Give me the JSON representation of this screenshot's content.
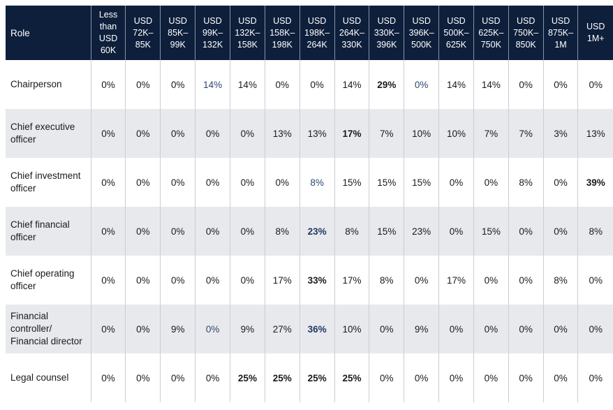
{
  "table": {
    "headers": [
      "Role",
      "Less than USD 60K",
      "USD 72K–85K",
      "USD 85K–99K",
      "USD 99K–132K",
      "USD 132K–158K",
      "USD 158K–198K",
      "USD 198K–264K",
      "USD 264K–330K",
      "USD 330K–396K",
      "USD 396K–500K",
      "USD 500K–625K",
      "USD 625K–750K",
      "USD 750K–850K",
      "USD 875K–1M",
      "USD 1M+"
    ],
    "rows": [
      {
        "role": "Chairperson",
        "values": [
          "0%",
          "0%",
          "0%",
          "14%",
          "14%",
          "0%",
          "0%",
          "14%",
          "29%",
          "0%",
          "14%",
          "14%",
          "0%",
          "0%",
          "0%"
        ],
        "bold": [
          8
        ],
        "accent": [
          3,
          9
        ]
      },
      {
        "role": "Chief executive officer",
        "values": [
          "0%",
          "0%",
          "0%",
          "0%",
          "0%",
          "13%",
          "13%",
          "17%",
          "7%",
          "10%",
          "10%",
          "7%",
          "7%",
          "3%",
          "13%"
        ],
        "bold": [
          7
        ],
        "accent": []
      },
      {
        "role": "Chief investment officer",
        "values": [
          "0%",
          "0%",
          "0%",
          "0%",
          "0%",
          "0%",
          "8%",
          "15%",
          "15%",
          "15%",
          "0%",
          "0%",
          "8%",
          "0%",
          "39%"
        ],
        "bold": [
          14
        ],
        "accent": [
          6
        ]
      },
      {
        "role": "Chief financial officer",
        "values": [
          "0%",
          "0%",
          "0%",
          "0%",
          "0%",
          "8%",
          "23%",
          "8%",
          "15%",
          "23%",
          "0%",
          "15%",
          "0%",
          "0%",
          "8%"
        ],
        "bold": [
          6
        ],
        "accent": [
          6
        ]
      },
      {
        "role": "Chief operating officer",
        "values": [
          "0%",
          "0%",
          "0%",
          "0%",
          "0%",
          "17%",
          "33%",
          "17%",
          "8%",
          "0%",
          "17%",
          "0%",
          "0%",
          "8%",
          "0%"
        ],
        "bold": [
          6
        ],
        "accent": []
      },
      {
        "role": "Financial controller/ Financial director",
        "values": [
          "0%",
          "0%",
          "9%",
          "0%",
          "9%",
          "27%",
          "36%",
          "10%",
          "0%",
          "9%",
          "0%",
          "0%",
          "0%",
          "0%",
          "0%"
        ],
        "bold": [
          6
        ],
        "accent": [
          3,
          6
        ]
      },
      {
        "role": "Legal counsel",
        "values": [
          "0%",
          "0%",
          "0%",
          "0%",
          "25%",
          "25%",
          "25%",
          "25%",
          "0%",
          "0%",
          "0%",
          "0%",
          "0%",
          "0%",
          "0%"
        ],
        "bold": [
          4,
          5,
          6,
          7
        ],
        "accent": []
      }
    ]
  }
}
